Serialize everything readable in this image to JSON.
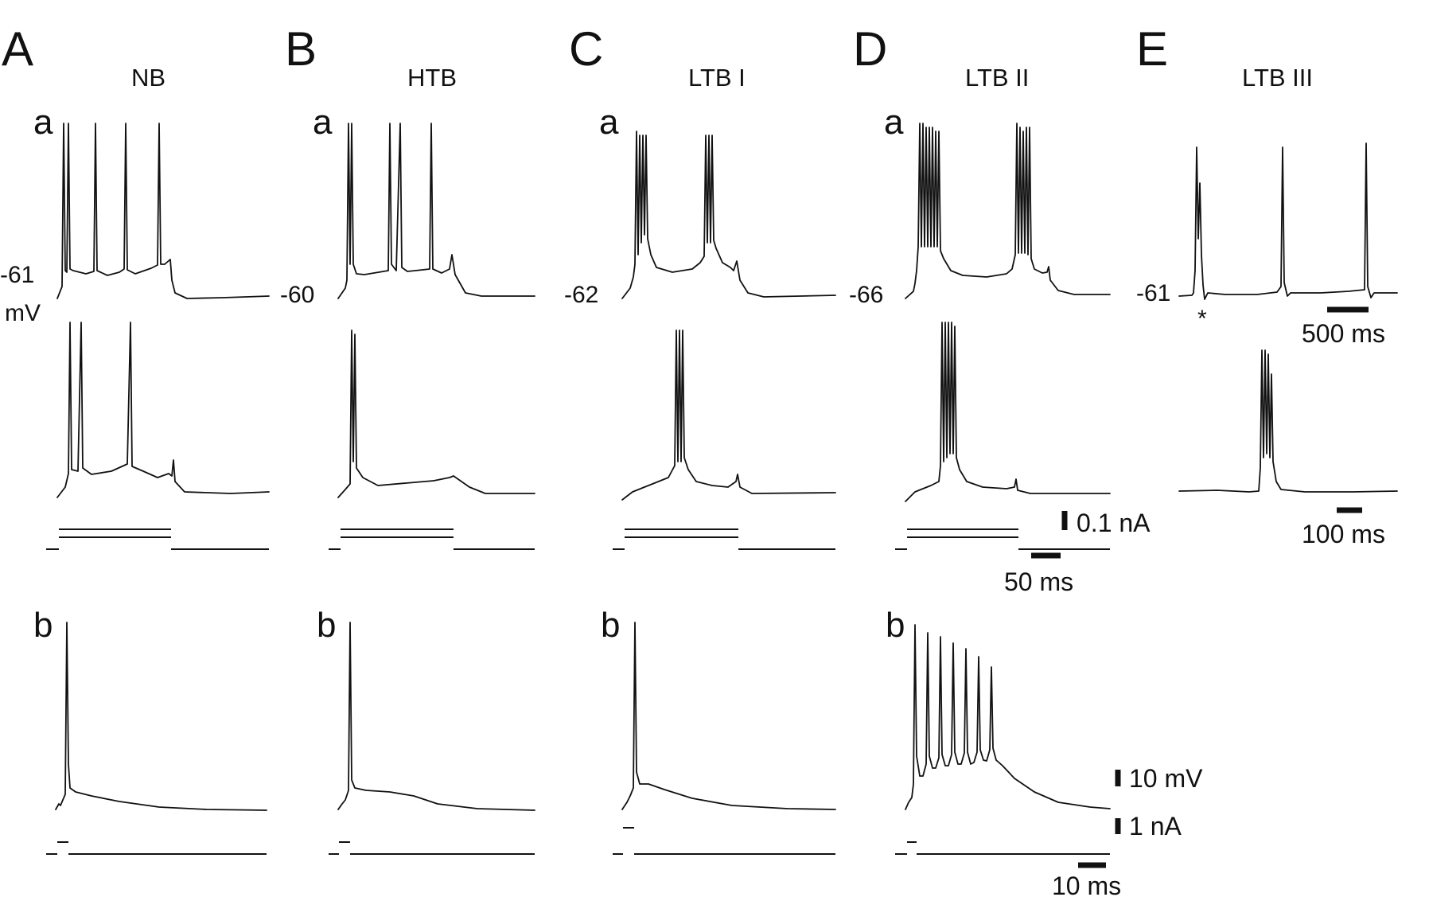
{
  "figure": {
    "columns": [
      {
        "panel": "A",
        "cell_type": "NB",
        "sub_a": "a",
        "sub_b": "b",
        "resting_value": "-61",
        "resting_unit": "mV"
      },
      {
        "panel": "B",
        "cell_type": "HTB",
        "sub_a": "a",
        "sub_b": "b",
        "resting_value": "-60"
      },
      {
        "panel": "C",
        "cell_type": "LTB I",
        "sub_a": "a",
        "sub_b": "b",
        "resting_value": "-62"
      },
      {
        "panel": "D",
        "cell_type": "LTB II",
        "sub_a": "a",
        "sub_b": "b",
        "resting_value": "-66"
      },
      {
        "panel": "E",
        "cell_type": "LTB III",
        "resting_value": "-61",
        "marker": "*"
      }
    ],
    "scale_bars": {
      "current_a": "0.1 nA",
      "time_a": "50 ms",
      "voltage_b": "10 mV",
      "current_b": "1 nA",
      "time_b": "10 ms",
      "time_e_top": "500 ms",
      "time_e_bottom": "100 ms"
    },
    "colors": {
      "ink": "#111111",
      "background": "#ffffff"
    }
  }
}
